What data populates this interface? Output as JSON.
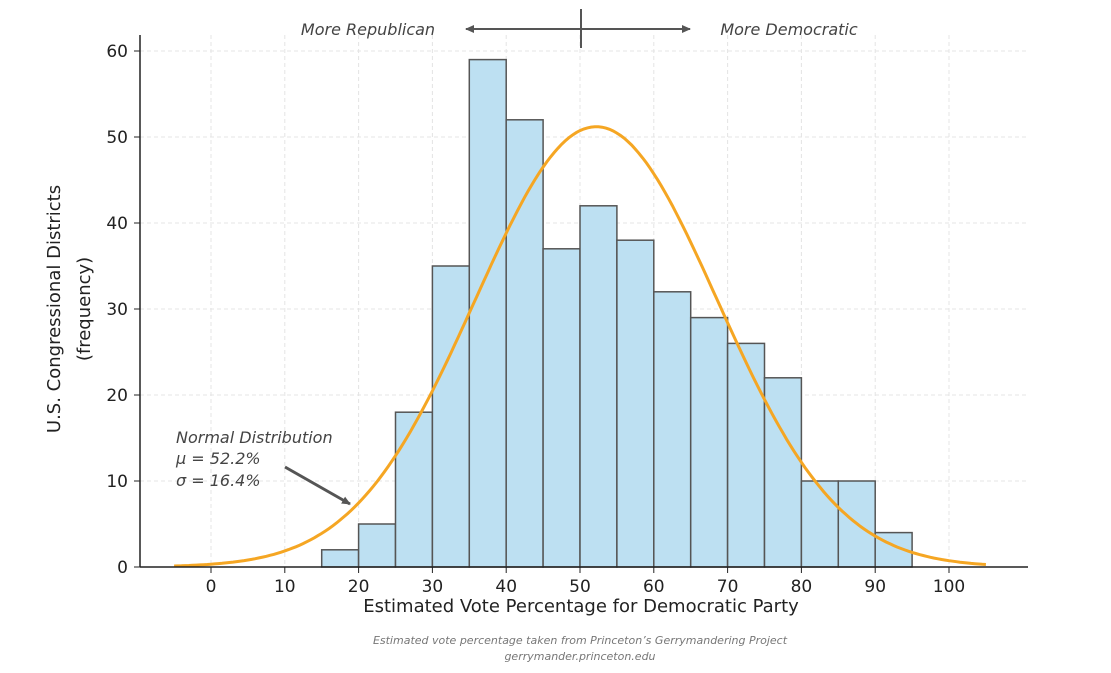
{
  "chart_data": {
    "type": "bar",
    "subtype": "histogram",
    "xlabel": "Estimated Vote Percentage for Democratic Party",
    "ylabel": [
      "U.S. Congressional Districts",
      "(frequency)"
    ],
    "xlim": [
      -10,
      111
    ],
    "ylim": [
      0,
      62
    ],
    "xticks": [
      0,
      10,
      20,
      30,
      40,
      50,
      60,
      70,
      80,
      90,
      100
    ],
    "yticks": [
      0,
      10,
      20,
      30,
      40,
      50,
      60
    ],
    "grid": true,
    "bin_width": 5,
    "bins": [
      {
        "start": 15,
        "end": 20,
        "count": 2
      },
      {
        "start": 20,
        "end": 25,
        "count": 5
      },
      {
        "start": 25,
        "end": 30,
        "count": 18
      },
      {
        "start": 30,
        "end": 35,
        "count": 35
      },
      {
        "start": 35,
        "end": 40,
        "count": 59
      },
      {
        "start": 40,
        "end": 45,
        "count": 52
      },
      {
        "start": 45,
        "end": 50,
        "count": 37
      },
      {
        "start": 50,
        "end": 55,
        "count": 42
      },
      {
        "start": 55,
        "end": 60,
        "count": 38
      },
      {
        "start": 60,
        "end": 65,
        "count": 32
      },
      {
        "start": 65,
        "end": 70,
        "count": 29
      },
      {
        "start": 70,
        "end": 75,
        "count": 26
      },
      {
        "start": 75,
        "end": 80,
        "count": 22
      },
      {
        "start": 80,
        "end": 85,
        "count": 10
      },
      {
        "start": 85,
        "end": 90,
        "count": 10
      },
      {
        "start": 90,
        "end": 95,
        "count": 4
      }
    ],
    "normal_curve": {
      "mean": 52.2,
      "std": 16.4,
      "x_range": [
        -5,
        105
      ],
      "peak": 51.2
    },
    "colors": {
      "bar_fill": "#bde0f2",
      "bar_edge": "#555555",
      "curve": "#f5a623",
      "arrow": "#555555"
    },
    "annotations": {
      "curve_label": [
        "Normal Distribution",
        "μ = 52.2%",
        "σ = 16.4%"
      ],
      "left_direction": "More Republican",
      "right_direction": "More Democratic"
    },
    "footnote": [
      "Estimated vote percentage taken from Princeton’s Gerrymandering Project",
      "gerrymander.princeton.edu"
    ]
  }
}
